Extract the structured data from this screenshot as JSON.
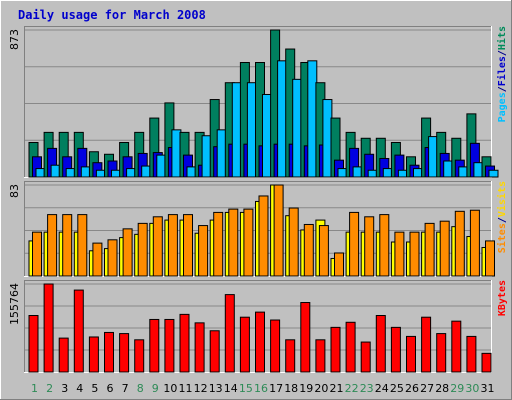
{
  "chart_data": {
    "title": "Daily usage for March 2008",
    "days": [
      "1",
      "2",
      "3",
      "4",
      "5",
      "6",
      "7",
      "8",
      "9",
      "10",
      "11",
      "12",
      "13",
      "14",
      "15",
      "16",
      "17",
      "18",
      "19",
      "20",
      "21",
      "22",
      "23",
      "24",
      "25",
      "26",
      "27",
      "28",
      "29",
      "30",
      "31"
    ],
    "weekend_days": [
      "1",
      "2",
      "8",
      "9",
      "15",
      "16",
      "22",
      "23",
      "29",
      "30"
    ],
    "panels": [
      {
        "type": "bar",
        "ymax_label": "873",
        "ymax": 873,
        "legend": [
          {
            "text": "Pages",
            "color": "#00bfff"
          },
          {
            "text": "/",
            "color": "#00008b"
          },
          {
            "text": "Files",
            "color": "#0000cd"
          },
          {
            "text": "/",
            "color": "#00008b"
          },
          {
            "text": "Hits",
            "color": "#008b5a"
          }
        ],
        "series": [
          {
            "name": "Hits",
            "color": "#007f5f",
            "values": [
              205,
              265,
              265,
              265,
              150,
              135,
              205,
              265,
              350,
              440,
              265,
              265,
              460,
              560,
              680,
              680,
              873,
              760,
              680,
              560,
              350,
              265,
              230,
              230,
              205,
              120,
              350,
              265,
              230,
              375,
              120
            ]
          },
          {
            "name": "Files",
            "color": "#0000e0",
            "values": [
              120,
              170,
              120,
              170,
              85,
              95,
              120,
              140,
              145,
              175,
              130,
              70,
              180,
              195,
              195,
              185,
              195,
              195,
              185,
              190,
              100,
              170,
              135,
              110,
              130,
              70,
              175,
              140,
              100,
              200,
              65
            ]
          },
          {
            "name": "Pages",
            "color": "#00bfff",
            "values": [
              50,
              70,
              50,
              60,
              40,
              40,
              50,
              65,
              130,
              280,
              60,
              245,
              280,
              560,
              560,
              490,
              690,
              580,
              690,
              460,
              50,
              60,
              40,
              50,
              40,
              50,
              240,
              95,
              60,
              85,
              40
            ]
          }
        ]
      },
      {
        "type": "bar",
        "ymax_label": "83",
        "ymax": 83,
        "legend": [
          {
            "text": "Sites",
            "color": "#ff8c00"
          },
          {
            "text": "/",
            "color": "#00008b"
          },
          {
            "text": "Visits",
            "color": "#ffd700"
          }
        ],
        "series": [
          {
            "name": "Visits",
            "color": "#ffff00",
            "values": [
              32,
              40,
              40,
              40,
              23,
              25,
              35,
              38,
              48,
              51,
              51,
              39,
              51,
              58,
              58,
              68,
              83,
              55,
              42,
              51,
              16,
              40,
              40,
              40,
              31,
              31,
              40,
              40,
              45,
              36,
              26
            ]
          },
          {
            "name": "Sites",
            "color": "#ff8c00",
            "values": [
              40,
              56,
              56,
              56,
              30,
              33,
              43,
              48,
              54,
              56,
              56,
              46,
              58,
              61,
              61,
              73,
              83,
              62,
              47,
              46,
              21,
              58,
              54,
              56,
              40,
              40,
              48,
              50,
              59,
              60,
              32
            ]
          }
        ]
      },
      {
        "type": "bar",
        "ymax_label": "155764",
        "ymax": 155764,
        "legend": [
          {
            "text": "KBytes",
            "color": "#ff0000"
          }
        ],
        "series": [
          {
            "name": "KBytes",
            "color": "#ff0000",
            "values": [
              100000,
              155764,
              60000,
              145000,
              62000,
              70000,
              68000,
              57000,
              93000,
              93000,
              102000,
              87000,
              73000,
              137000,
              97000,
              106000,
              92000,
              57000,
              123000,
              57000,
              79000,
              88000,
              53000,
              100000,
              79000,
              63000,
              97000,
              68000,
              90000,
              63000,
              33000
            ]
          }
        ]
      }
    ]
  }
}
